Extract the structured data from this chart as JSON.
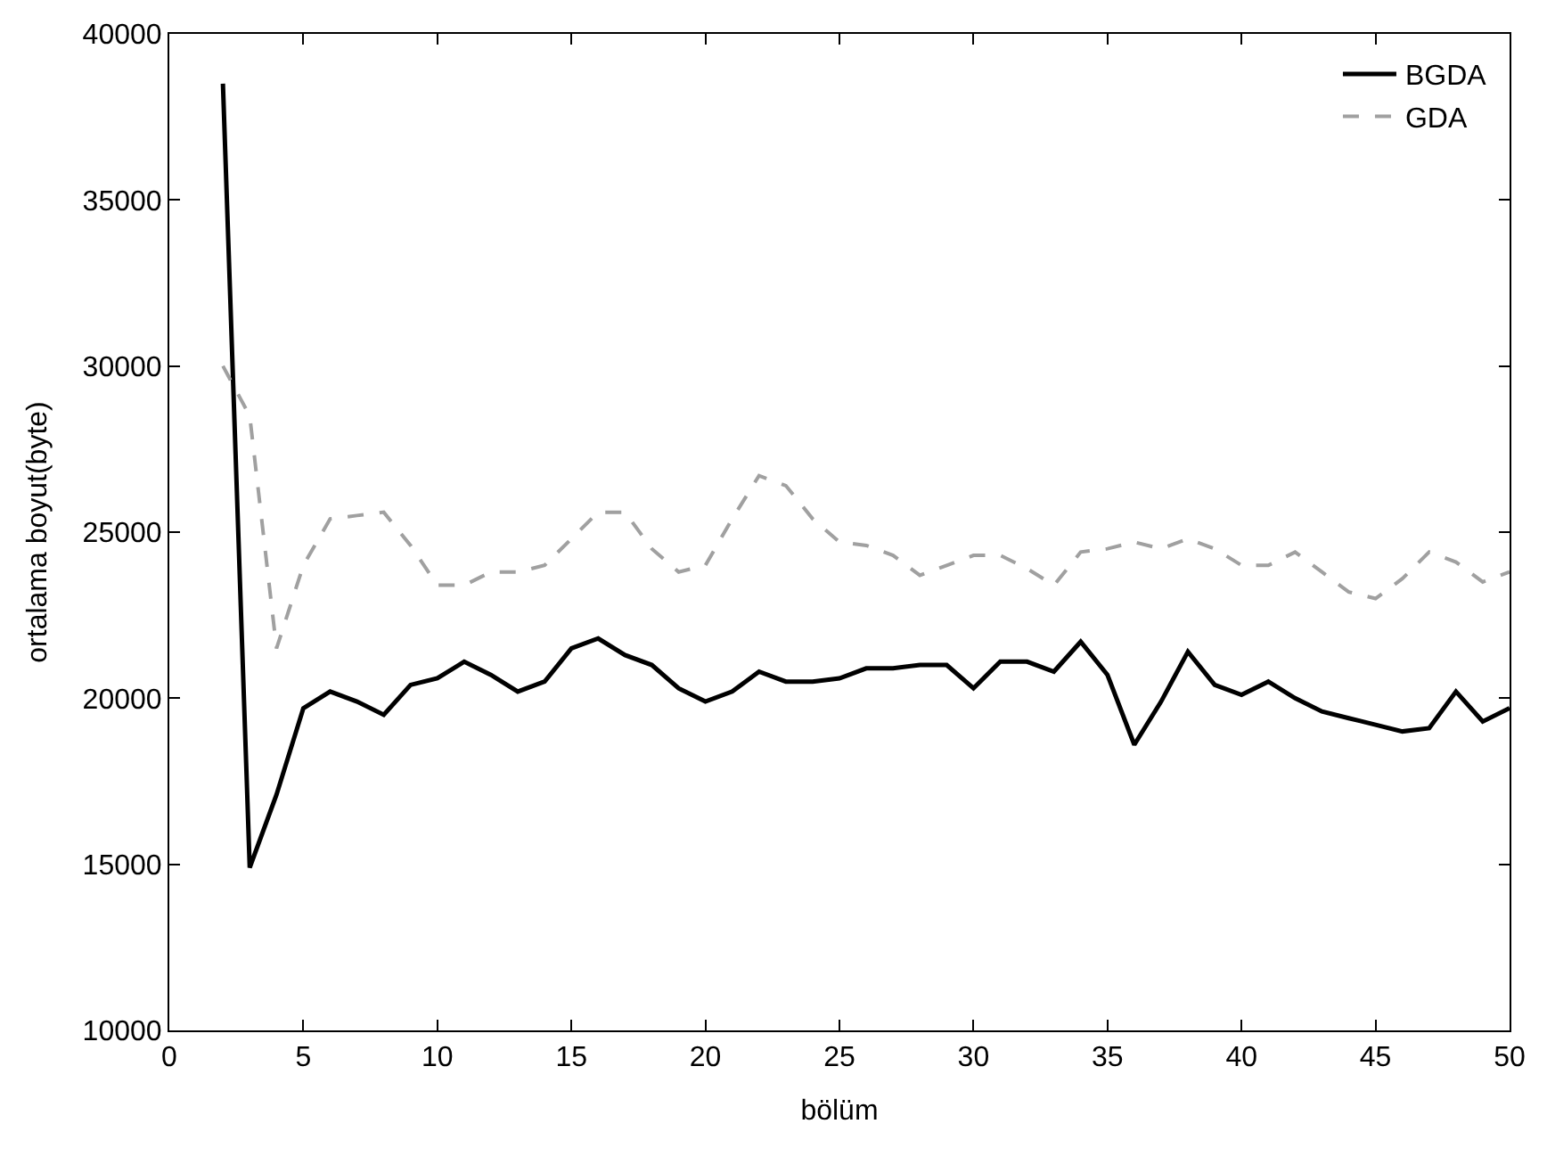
{
  "chart_data": {
    "type": "line",
    "xlabel": "bölüm",
    "ylabel": "ortalama boyut(byte)",
    "x": [
      2,
      3,
      4,
      5,
      6,
      7,
      8,
      9,
      10,
      11,
      12,
      13,
      14,
      15,
      16,
      17,
      18,
      19,
      20,
      21,
      22,
      23,
      24,
      25,
      26,
      27,
      28,
      29,
      30,
      31,
      32,
      33,
      34,
      35,
      36,
      37,
      38,
      39,
      40,
      41,
      42,
      43,
      44,
      45,
      46,
      47,
      48,
      49,
      50
    ],
    "series": [
      {
        "name": "BGDA",
        "color": "#000000",
        "line_style": "solid",
        "values": [
          38500,
          14900,
          17100,
          19700,
          20200,
          19900,
          19500,
          20400,
          20600,
          21100,
          20700,
          20200,
          20500,
          21500,
          21800,
          21300,
          21000,
          20300,
          19900,
          20200,
          20800,
          20500,
          20500,
          20600,
          20900,
          20900,
          21000,
          21000,
          20300,
          21100,
          21100,
          20800,
          21700,
          20700,
          18600,
          19900,
          21400,
          20400,
          20100,
          20500,
          20000,
          19600,
          19400,
          19200,
          19000,
          19100,
          20200,
          19300,
          19700
        ]
      },
      {
        "name": "GDA",
        "color": "#a0a0a0",
        "line_style": "dashed",
        "values": [
          30000,
          28500,
          21500,
          24000,
          25400,
          25500,
          25600,
          24600,
          23400,
          23400,
          23800,
          23800,
          24000,
          24800,
          25600,
          25600,
          24500,
          23800,
          24000,
          25400,
          26700,
          26400,
          25400,
          24700,
          24600,
          24300,
          23700,
          24000,
          24300,
          24300,
          23900,
          23400,
          24400,
          24500,
          24700,
          24500,
          24800,
          24500,
          24000,
          24000,
          24400,
          23800,
          23200,
          23000,
          23600,
          24400,
          24100,
          23500,
          23800
        ]
      }
    ],
    "xlim": [
      0,
      50
    ],
    "xticks": [
      0,
      5,
      10,
      15,
      20,
      25,
      30,
      35,
      40,
      45,
      50
    ],
    "ylim": [
      10000,
      40000
    ],
    "yticks": [
      10000,
      15000,
      20000,
      25000,
      30000,
      35000,
      40000
    ],
    "legend": "top right",
    "marker": "none"
  }
}
